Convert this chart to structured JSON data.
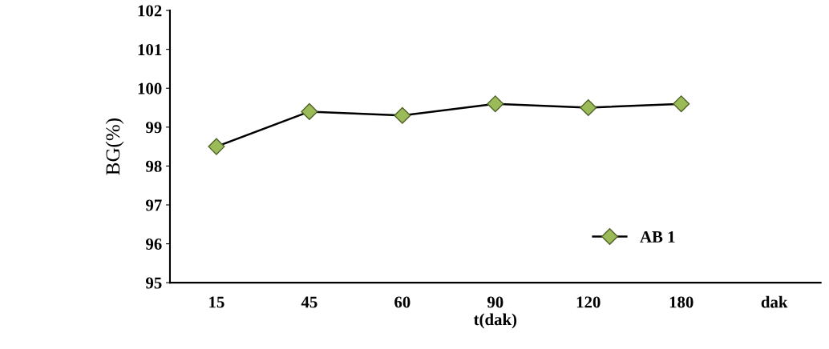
{
  "chart_data": {
    "type": "line",
    "xlabel": "t(dak)",
    "ylabel": "BG(%)",
    "categories": [
      "15",
      "45",
      "60",
      "90",
      "120",
      "180",
      "dak"
    ],
    "series": [
      {
        "name": "AB 1",
        "color": "#000000",
        "values": [
          98.5,
          99.4,
          99.3,
          99.6,
          99.5,
          99.6,
          null
        ]
      }
    ],
    "ylim": [
      95,
      102
    ],
    "yticks": [
      95,
      96,
      97,
      98,
      99,
      100,
      101,
      102
    ],
    "marker": "diamond",
    "line_style": "solid",
    "legend": "bottom right",
    "grid": false
  }
}
